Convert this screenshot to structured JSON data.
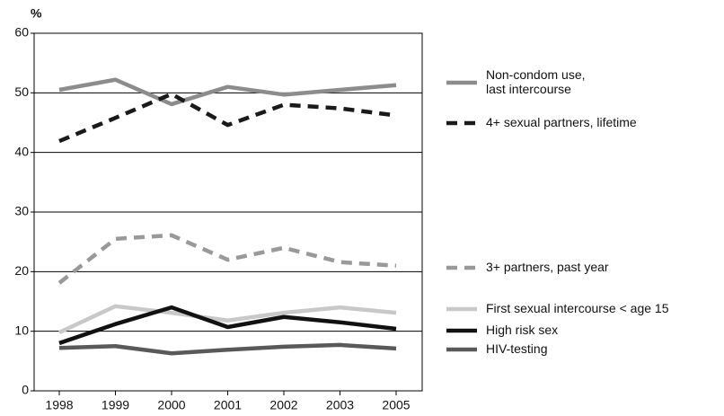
{
  "chart_data": {
    "type": "line",
    "y_label": "%",
    "categories": [
      "1998",
      "1999",
      "2000",
      "2001",
      "2002",
      "2003",
      "2005"
    ],
    "ylim": [
      0,
      60
    ],
    "yticks": [
      0,
      10,
      20,
      30,
      40,
      50,
      60
    ],
    "grid": true,
    "series": [
      {
        "name": "Non-condom use,\nlast intercourse",
        "color": "#8c8c8c",
        "dash": false,
        "values": [
          50.5,
          52.2,
          48.1,
          51.0,
          49.7,
          50.5,
          51.3
        ]
      },
      {
        "name": "4+ sexual partners, lifetime",
        "color": "#1a1a1a",
        "dash": true,
        "values": [
          41.9,
          45.8,
          49.8,
          44.6,
          48.0,
          47.4,
          46.2
        ]
      },
      {
        "name": "3+ partners, past year",
        "color": "#999999",
        "dash": true,
        "values": [
          18.1,
          25.5,
          26.1,
          22.0,
          24.0,
          21.6,
          21.0
        ]
      },
      {
        "name": "First sexual intercourse < age 15",
        "color": "#c8c8c8",
        "dash": false,
        "values": [
          9.8,
          14.2,
          13.1,
          11.8,
          13.1,
          14.0,
          13.1
        ]
      },
      {
        "name": "High risk sex",
        "color": "#111111",
        "dash": false,
        "values": [
          8.0,
          11.2,
          14.0,
          10.7,
          12.4,
          11.5,
          10.4
        ]
      },
      {
        "name": "HIV-testing",
        "color": "#595959",
        "dash": false,
        "values": [
          7.2,
          7.5,
          6.3,
          6.9,
          7.4,
          7.7,
          7.1
        ]
      }
    ]
  }
}
